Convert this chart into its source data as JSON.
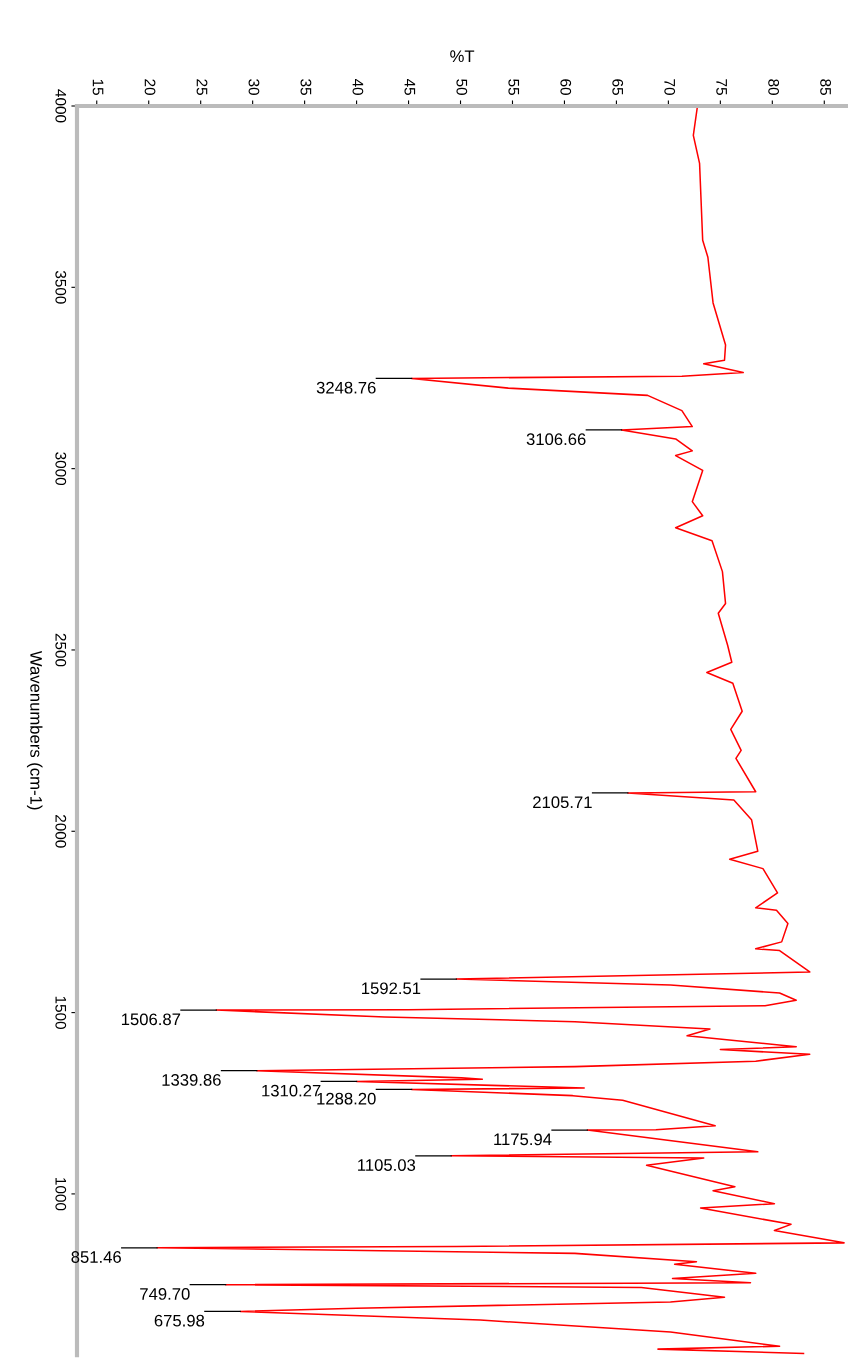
{
  "chart_data": {
    "type": "line",
    "xlabel": "%T",
    "ylabel": "Wavenumbers (cm-1)",
    "xlim": [
      13.1,
      87.2
    ],
    "xticks": [
      15,
      20,
      25,
      30,
      35,
      40,
      45,
      50,
      55,
      60,
      65,
      70,
      75,
      80,
      85
    ],
    "ylim": [
      555,
      4000
    ],
    "yticks": [
      4000,
      3500,
      3000,
      2500,
      2000,
      1500,
      1000
    ],
    "grid": false,
    "legend": false,
    "marker": "none",
    "line_style": "solid",
    "series": [
      {
        "color": "#ff0000",
        "x": [
          72.8,
          72.4,
          73.0,
          73.3,
          73.8,
          74.3,
          75.5,
          75.4,
          73.4,
          77.2,
          71.3,
          45.3,
          54.6,
          68.0,
          71.3,
          72.3,
          65.5,
          70.7,
          72.3,
          70.7,
          73.3,
          72.3,
          73.3,
          70.7,
          74.2,
          75.2,
          75.5,
          74.8,
          75.7,
          76.1,
          73.7,
          76.2,
          77.1,
          76.0,
          77.0,
          76.5,
          78.4,
          66.1,
          76.3,
          78.0,
          78.6,
          75.9,
          79.1,
          80.5,
          78.4,
          80.4,
          81.5,
          80.9,
          78.4,
          80.7,
          83.6,
          49.6,
          70.2,
          80.7,
          82.3,
          79.3,
          45.0,
          26.5,
          42.7,
          61.0,
          74.0,
          71.8,
          82.3,
          75.0,
          83.6,
          78.4,
          61.0,
          30.4,
          50.1,
          52.1,
          40.0,
          61.9,
          45.3,
          60.8,
          65.6,
          74.5,
          68.8,
          62.2,
          78.6,
          49.1,
          73.4,
          67.9,
          76.4,
          74.3,
          80.2,
          73.1,
          81.8,
          80.2,
          86.9,
          49.6,
          20.8,
          61.0,
          72.7,
          70.6,
          78.4,
          70.4,
          77.9,
          27.4,
          67.4,
          75.4,
          70.2,
          40.0,
          28.8,
          51.9,
          70.2,
          80.7,
          69.0,
          83.0
        ],
        "values": [
          4000,
          3919,
          3842,
          3630,
          3583,
          3457,
          3341,
          3299,
          3289,
          3265,
          3255,
          3248.76,
          3222,
          3202,
          3160,
          3116,
          3106.66,
          3082,
          3049,
          3036,
          2995,
          2909,
          2870,
          2837,
          2801,
          2716,
          2628,
          2601,
          2513,
          2466,
          2438,
          2408,
          2331,
          2281,
          2223,
          2201,
          2109,
          2105.71,
          2086,
          2032,
          1945,
          1923,
          1897,
          1830,
          1789,
          1782,
          1746,
          1695,
          1676,
          1671,
          1612,
          1592.51,
          1576,
          1554,
          1534,
          1519,
          1508,
          1506.87,
          1488,
          1475,
          1455,
          1436,
          1406,
          1398,
          1385,
          1366,
          1351,
          1339.86,
          1320,
          1316,
          1310.27,
          1292,
          1288.2,
          1271,
          1258,
          1188,
          1177,
          1175.94,
          1116,
          1105.03,
          1099,
          1079,
          1020,
          1009,
          973,
          961,
          916,
          899,
          865,
          855,
          851.46,
          836,
          813,
          806,
          781,
          767,
          755,
          749.7,
          742,
          715,
          702,
          685,
          675.98,
          652,
          619,
          580,
          572,
          560
        ]
      }
    ],
    "annotations": [
      {
        "text": "3248.76",
        "x": 45.3,
        "y": 3248.76
      },
      {
        "text": "3106.66",
        "x": 65.5,
        "y": 3106.66
      },
      {
        "text": "2105.71",
        "x": 66.1,
        "y": 2105.71
      },
      {
        "text": "1592.51",
        "x": 49.6,
        "y": 1592.51
      },
      {
        "text": "1506.87",
        "x": 26.5,
        "y": 1506.87
      },
      {
        "text": "1339.86",
        "x": 30.4,
        "y": 1339.86
      },
      {
        "text": "1310.27",
        "x": 40.0,
        "y": 1310.27
      },
      {
        "text": "1288.20",
        "x": 45.3,
        "y": 1288.2
      },
      {
        "text": "1175.94",
        "x": 62.2,
        "y": 1175.94
      },
      {
        "text": "1105.03",
        "x": 49.1,
        "y": 1105.03
      },
      {
        "text": "851.46",
        "x": 20.8,
        "y": 851.46
      },
      {
        "text": "749.70",
        "x": 27.4,
        "y": 749.7
      },
      {
        "text": "675.98",
        "x": 28.8,
        "y": 675.98
      }
    ]
  }
}
